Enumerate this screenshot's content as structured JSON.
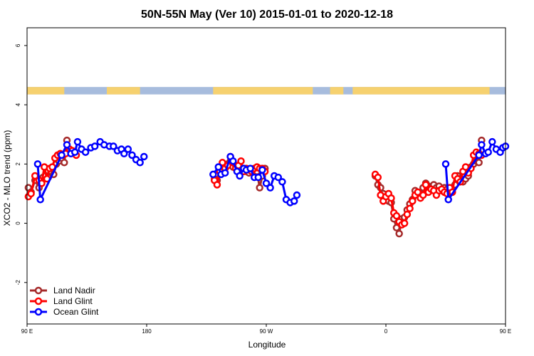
{
  "chart_data": {
    "type": "line",
    "title": "50N-55N May (Ver 10)   2015-01-01 to 2020-12-18",
    "xlabel": "Longitude",
    "ylabel": "XCO2 - MLO trend (ppm)",
    "xlim": [
      90,
      450
    ],
    "ylim": [
      -3.4,
      6.6
    ],
    "x_ticks": [
      {
        "value": 90,
        "label": "90 E"
      },
      {
        "value": 180,
        "label": "180"
      },
      {
        "value": 270,
        "label": "90 W"
      },
      {
        "value": 360,
        "label": "0"
      },
      {
        "value": 450,
        "label": "90 E"
      },
      {
        "value": 540,
        "label": "180"
      }
    ],
    "y_ticks": [
      {
        "value": -2,
        "label": "-2"
      },
      {
        "value": 0,
        "label": "0"
      },
      {
        "value": 2,
        "label": "2"
      },
      {
        "value": 4,
        "label": "4"
      },
      {
        "value": 6,
        "label": "6"
      }
    ],
    "grid": false,
    "legend_position": "bottom-left",
    "land_ocean_strip": {
      "land_color": "#f6d16f",
      "ocean_color": "#a7bcdd"
    },
    "series": [
      {
        "name": "Land Nadir",
        "color": "#a52a2a",
        "points": [
          [
            91,
            1.2
          ],
          [
            93,
            1.05
          ],
          [
            96,
            1.45
          ],
          [
            99,
            1.2
          ],
          [
            102,
            1.55
          ],
          [
            104,
            1.6
          ],
          [
            106,
            1.55
          ],
          [
            108,
            1.75
          ],
          [
            110,
            1.65
          ],
          [
            112,
            2.0
          ],
          [
            114,
            2.1
          ],
          [
            116,
            2.2
          ],
          [
            118,
            2.05
          ],
          [
            120,
            2.8
          ],
          [
            231,
            1.5
          ],
          [
            233,
            1.45
          ],
          [
            235,
            1.85
          ],
          [
            237,
            1.9
          ],
          [
            239,
            1.95
          ],
          [
            241,
            2.0
          ],
          [
            243,
            2.1
          ],
          [
            245,
            1.9
          ],
          [
            247,
            1.95
          ],
          [
            249,
            1.85
          ],
          [
            251,
            1.8
          ],
          [
            253,
            1.85
          ],
          [
            255,
            1.75
          ],
          [
            257,
            1.7
          ],
          [
            259,
            1.8
          ],
          [
            261,
            1.85
          ],
          [
            263,
            1.75
          ],
          [
            265,
            1.2
          ],
          [
            267,
            1.6
          ],
          [
            269,
            1.85
          ],
          [
            352,
            1.6
          ],
          [
            354,
            1.3
          ],
          [
            356,
            1.2
          ],
          [
            358,
            1.0
          ],
          [
            360,
            0.85
          ],
          [
            362,
            0.75
          ],
          [
            364,
            0.7
          ],
          [
            366,
            0.15
          ],
          [
            368,
            -0.15
          ],
          [
            370,
            -0.35
          ],
          [
            372,
            0.15
          ],
          [
            374,
            0.2
          ],
          [
            376,
            0.45
          ],
          [
            378,
            0.65
          ],
          [
            380,
            0.8
          ],
          [
            382,
            1.1
          ],
          [
            384,
            1.05
          ],
          [
            386,
            1.0
          ],
          [
            388,
            1.2
          ],
          [
            390,
            1.35
          ],
          [
            392,
            1.25
          ],
          [
            394,
            1.2
          ],
          [
            396,
            1.3
          ],
          [
            398,
            1.2
          ],
          [
            400,
            1.25
          ],
          [
            402,
            1.1
          ],
          [
            404,
            1.2
          ],
          [
            406,
            1.15
          ],
          [
            408,
            1.1
          ],
          [
            410,
            1.2
          ],
          [
            412,
            1.3
          ],
          [
            414,
            1.6
          ],
          [
            416,
            1.5
          ],
          [
            418,
            1.4
          ],
          [
            420,
            1.5
          ],
          [
            422,
            1.6
          ],
          [
            424,
            1.9
          ],
          [
            426,
            2.0
          ],
          [
            428,
            2.1
          ],
          [
            430,
            2.05
          ],
          [
            432,
            2.8
          ]
        ]
      },
      {
        "name": "Land Glint",
        "color": "#ff0000",
        "points": [
          [
            91,
            0.9
          ],
          [
            93,
            1.0
          ],
          [
            96,
            1.6
          ],
          [
            99,
            1.45
          ],
          [
            101,
            1.35
          ],
          [
            103,
            1.9
          ],
          [
            105,
            1.5
          ],
          [
            107,
            1.85
          ],
          [
            109,
            1.9
          ],
          [
            111,
            2.2
          ],
          [
            113,
            2.3
          ],
          [
            115,
            2.35
          ],
          [
            117,
            2.3
          ],
          [
            119,
            2.35
          ],
          [
            122,
            2.5
          ],
          [
            124,
            2.45
          ],
          [
            127,
            2.3
          ],
          [
            231,
            1.45
          ],
          [
            233,
            1.3
          ],
          [
            235,
            1.75
          ],
          [
            237,
            2.05
          ],
          [
            239,
            1.85
          ],
          [
            241,
            1.95
          ],
          [
            243,
            2.25
          ],
          [
            245,
            2.05
          ],
          [
            247,
            1.85
          ],
          [
            249,
            1.95
          ],
          [
            251,
            2.1
          ],
          [
            253,
            1.75
          ],
          [
            255,
            1.85
          ],
          [
            257,
            1.8
          ],
          [
            259,
            1.75
          ],
          [
            261,
            1.85
          ],
          [
            263,
            1.9
          ],
          [
            265,
            1.85
          ],
          [
            267,
            1.85
          ],
          [
            269,
            1.75
          ],
          [
            352,
            1.65
          ],
          [
            354,
            1.55
          ],
          [
            356,
            0.95
          ],
          [
            358,
            0.75
          ],
          [
            360,
            0.9
          ],
          [
            362,
            1.0
          ],
          [
            364,
            0.85
          ],
          [
            366,
            0.35
          ],
          [
            368,
            0.25
          ],
          [
            370,
            0.05
          ],
          [
            372,
            -0.05
          ],
          [
            374,
            0.0
          ],
          [
            376,
            0.3
          ],
          [
            378,
            0.5
          ],
          [
            380,
            0.75
          ],
          [
            382,
            0.95
          ],
          [
            384,
            1.05
          ],
          [
            386,
            0.85
          ],
          [
            388,
            0.95
          ],
          [
            390,
            1.3
          ],
          [
            392,
            1.05
          ],
          [
            394,
            1.15
          ],
          [
            396,
            1.1
          ],
          [
            398,
            0.95
          ],
          [
            400,
            1.1
          ],
          [
            402,
            1.15
          ],
          [
            404,
            1.05
          ],
          [
            406,
            1.0
          ],
          [
            408,
            1.2
          ],
          [
            410,
            1.05
          ],
          [
            412,
            1.6
          ],
          [
            414,
            1.5
          ],
          [
            416,
            1.4
          ],
          [
            418,
            1.75
          ],
          [
            420,
            1.9
          ],
          [
            422,
            1.7
          ],
          [
            424,
            1.85
          ],
          [
            426,
            2.3
          ],
          [
            428,
            2.4
          ],
          [
            430,
            2.35
          ],
          [
            432,
            2.3
          ]
        ]
      },
      {
        "name": "Ocean Glint",
        "color": "#0000ff",
        "points": [
          [
            98,
            2.0
          ],
          [
            100,
            0.8
          ],
          [
            116,
            2.3
          ],
          [
            120,
            2.65
          ],
          [
            123,
            2.35
          ],
          [
            126,
            2.4
          ],
          [
            128,
            2.75
          ],
          [
            131,
            2.5
          ],
          [
            134,
            2.4
          ],
          [
            138,
            2.55
          ],
          [
            141,
            2.6
          ],
          [
            145,
            2.75
          ],
          [
            148,
            2.65
          ],
          [
            152,
            2.6
          ],
          [
            155,
            2.6
          ],
          [
            158,
            2.45
          ],
          [
            161,
            2.5
          ],
          [
            163,
            2.35
          ],
          [
            166,
            2.5
          ],
          [
            169,
            2.3
          ],
          [
            172,
            2.15
          ],
          [
            175,
            2.05
          ],
          [
            178,
            2.25
          ],
          [
            230,
            1.65
          ],
          [
            234,
            1.9
          ],
          [
            236,
            1.65
          ],
          [
            239,
            1.7
          ],
          [
            243,
            2.25
          ],
          [
            245,
            2.1
          ],
          [
            248,
            1.75
          ],
          [
            250,
            1.6
          ],
          [
            253,
            1.85
          ],
          [
            255,
            1.8
          ],
          [
            258,
            1.85
          ],
          [
            261,
            1.55
          ],
          [
            264,
            1.55
          ],
          [
            267,
            1.8
          ],
          [
            270,
            1.35
          ],
          [
            273,
            1.2
          ],
          [
            276,
            1.6
          ],
          [
            279,
            1.55
          ],
          [
            282,
            1.4
          ],
          [
            285,
            0.8
          ],
          [
            288,
            0.7
          ],
          [
            291,
            0.75
          ],
          [
            293,
            0.95
          ],
          [
            405,
            2.0
          ],
          [
            407,
            0.8
          ],
          [
            430,
            2.3
          ],
          [
            432,
            2.65
          ],
          [
            435,
            2.35
          ],
          [
            437,
            2.4
          ],
          [
            440,
            2.75
          ],
          [
            443,
            2.5
          ],
          [
            446,
            2.4
          ],
          [
            448,
            2.55
          ],
          [
            450,
            2.6
          ]
        ]
      }
    ]
  }
}
